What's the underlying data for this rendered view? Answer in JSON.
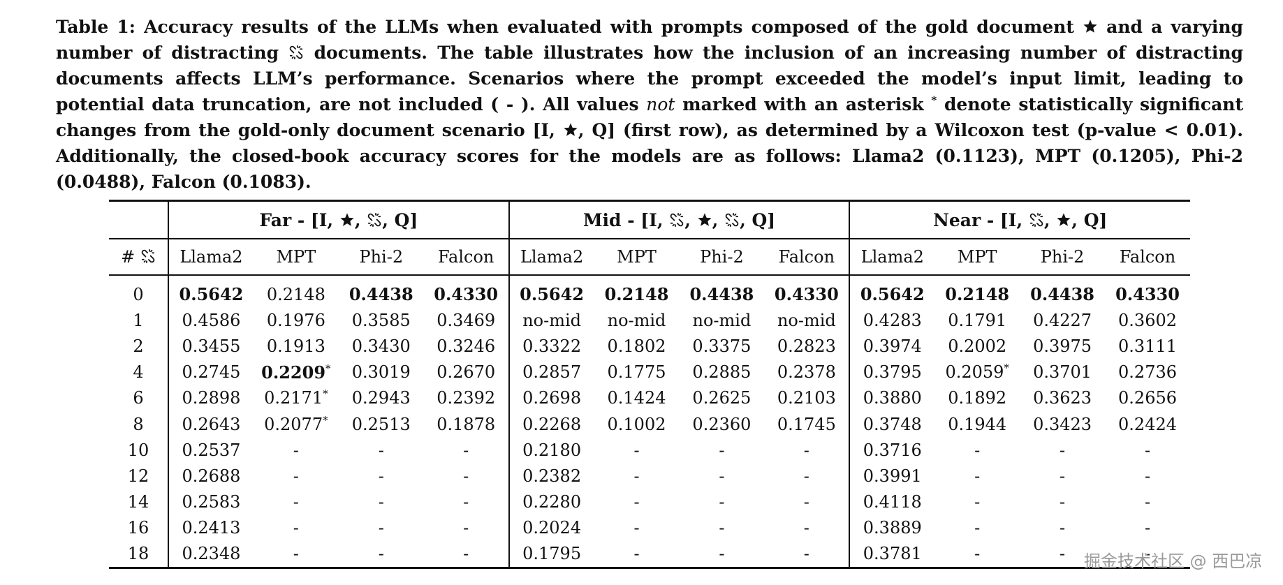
{
  "caption": {
    "part1": "Table 1: Accuracy results of the LLMs when evaluated with prompts composed of the gold document ",
    "part2": " and a varying number of distracting ",
    "part3": " documents. The table illustrates how the inclusion of an increasing number of distracting documents affects LLM’s performance. Scenarios where the prompt exceeded the model’s input limit, leading to potential data truncation, are not included ( - ). All values ",
    "emphasis": "not",
    "part4": " marked with an asterisk ",
    "asterisk": "*",
    "part5": " denote statistically significant changes from the gold-only document scenario [I, ",
    "part6": ", Q] (first row), as determined by a Wilcoxon test (p-value < 0.01). Additionally, the closed-book accuracy scores for the models are as follows: Llama2 (0.1123), MPT (0.1205), Phi-2 (0.0488), Falcon (0.1083)."
  },
  "table": {
    "groups": [
      {
        "prefix": "Far - [I, ",
        "pieces": [
          "star",
          ", ",
          "link",
          ", Q]"
        ]
      },
      {
        "prefix": "Mid - [I, ",
        "pieces": [
          "link",
          ", ",
          "star",
          ", ",
          "link",
          ", Q]"
        ]
      },
      {
        "prefix": "Near - [I, ",
        "pieces": [
          "link",
          ", ",
          "star",
          ", Q]"
        ]
      }
    ],
    "num_header": "# ",
    "models": [
      "Llama2",
      "MPT",
      "Phi-2",
      "Falcon"
    ],
    "rows": [
      {
        "n": "0",
        "cells": [
          {
            "v": "0.5642",
            "b": true
          },
          {
            "v": "0.2148"
          },
          {
            "v": "0.4438",
            "b": true
          },
          {
            "v": "0.4330",
            "b": true
          },
          {
            "v": "0.5642",
            "b": true
          },
          {
            "v": "0.2148",
            "b": true
          },
          {
            "v": "0.4438",
            "b": true
          },
          {
            "v": "0.4330",
            "b": true
          },
          {
            "v": "0.5642",
            "b": true
          },
          {
            "v": "0.2148",
            "b": true
          },
          {
            "v": "0.4438",
            "b": true
          },
          {
            "v": "0.4330",
            "b": true
          }
        ]
      },
      {
        "n": "1",
        "cells": [
          {
            "v": "0.4586"
          },
          {
            "v": "0.1976"
          },
          {
            "v": "0.3585"
          },
          {
            "v": "0.3469"
          },
          {
            "v": "no-mid"
          },
          {
            "v": "no-mid"
          },
          {
            "v": "no-mid"
          },
          {
            "v": "no-mid"
          },
          {
            "v": "0.4283"
          },
          {
            "v": "0.1791"
          },
          {
            "v": "0.4227"
          },
          {
            "v": "0.3602"
          }
        ]
      },
      {
        "n": "2",
        "cells": [
          {
            "v": "0.3455"
          },
          {
            "v": "0.1913"
          },
          {
            "v": "0.3430"
          },
          {
            "v": "0.3246"
          },
          {
            "v": "0.3322"
          },
          {
            "v": "0.1802"
          },
          {
            "v": "0.3375"
          },
          {
            "v": "0.2823"
          },
          {
            "v": "0.3974"
          },
          {
            "v": "0.2002"
          },
          {
            "v": "0.3975"
          },
          {
            "v": "0.3111"
          }
        ]
      },
      {
        "n": "4",
        "cells": [
          {
            "v": "0.2745"
          },
          {
            "v": "0.2209",
            "b": true,
            "s": true
          },
          {
            "v": "0.3019"
          },
          {
            "v": "0.2670"
          },
          {
            "v": "0.2857"
          },
          {
            "v": "0.1775"
          },
          {
            "v": "0.2885"
          },
          {
            "v": "0.2378"
          },
          {
            "v": "0.3795"
          },
          {
            "v": "0.2059",
            "s": true
          },
          {
            "v": "0.3701"
          },
          {
            "v": "0.2736"
          }
        ]
      },
      {
        "n": "6",
        "cells": [
          {
            "v": "0.2898"
          },
          {
            "v": "0.2171",
            "s": true
          },
          {
            "v": "0.2943"
          },
          {
            "v": "0.2392"
          },
          {
            "v": "0.2698"
          },
          {
            "v": "0.1424"
          },
          {
            "v": "0.2625"
          },
          {
            "v": "0.2103"
          },
          {
            "v": "0.3880"
          },
          {
            "v": "0.1892"
          },
          {
            "v": "0.3623"
          },
          {
            "v": "0.2656"
          }
        ]
      },
      {
        "n": "8",
        "cells": [
          {
            "v": "0.2643"
          },
          {
            "v": "0.2077",
            "s": true
          },
          {
            "v": "0.2513"
          },
          {
            "v": "0.1878"
          },
          {
            "v": "0.2268"
          },
          {
            "v": "0.1002"
          },
          {
            "v": "0.2360"
          },
          {
            "v": "0.1745"
          },
          {
            "v": "0.3748"
          },
          {
            "v": "0.1944"
          },
          {
            "v": "0.3423"
          },
          {
            "v": "0.2424"
          }
        ]
      },
      {
        "n": "10",
        "cells": [
          {
            "v": "0.2537"
          },
          {
            "v": "-"
          },
          {
            "v": "-"
          },
          {
            "v": "-"
          },
          {
            "v": "0.2180"
          },
          {
            "v": "-"
          },
          {
            "v": "-"
          },
          {
            "v": "-"
          },
          {
            "v": "0.3716"
          },
          {
            "v": "-"
          },
          {
            "v": "-"
          },
          {
            "v": "-"
          }
        ]
      },
      {
        "n": "12",
        "cells": [
          {
            "v": "0.2688"
          },
          {
            "v": "-"
          },
          {
            "v": "-"
          },
          {
            "v": "-"
          },
          {
            "v": "0.2382"
          },
          {
            "v": "-"
          },
          {
            "v": "-"
          },
          {
            "v": "-"
          },
          {
            "v": "0.3991"
          },
          {
            "v": "-"
          },
          {
            "v": "-"
          },
          {
            "v": "-"
          }
        ]
      },
      {
        "n": "14",
        "cells": [
          {
            "v": "0.2583"
          },
          {
            "v": "-"
          },
          {
            "v": "-"
          },
          {
            "v": "-"
          },
          {
            "v": "0.2280"
          },
          {
            "v": "-"
          },
          {
            "v": "-"
          },
          {
            "v": "-"
          },
          {
            "v": "0.4118"
          },
          {
            "v": "-"
          },
          {
            "v": "-"
          },
          {
            "v": "-"
          }
        ]
      },
      {
        "n": "16",
        "cells": [
          {
            "v": "0.2413"
          },
          {
            "v": "-"
          },
          {
            "v": "-"
          },
          {
            "v": "-"
          },
          {
            "v": "0.2024"
          },
          {
            "v": "-"
          },
          {
            "v": "-"
          },
          {
            "v": "-"
          },
          {
            "v": "0.3889"
          },
          {
            "v": "-"
          },
          {
            "v": "-"
          },
          {
            "v": "-"
          }
        ]
      },
      {
        "n": "18",
        "cells": [
          {
            "v": "0.2348"
          },
          {
            "v": "-"
          },
          {
            "v": "-"
          },
          {
            "v": "-"
          },
          {
            "v": "0.1795"
          },
          {
            "v": "-"
          },
          {
            "v": "-"
          },
          {
            "v": "-"
          },
          {
            "v": "0.3781"
          },
          {
            "v": "-"
          },
          {
            "v": "-"
          },
          {
            "v": "-"
          }
        ]
      }
    ]
  },
  "icons": {
    "gold": "star-icon",
    "distracting": "chain-link-icon"
  },
  "watermark": "掘金技术社区 @ 西巴凉"
}
